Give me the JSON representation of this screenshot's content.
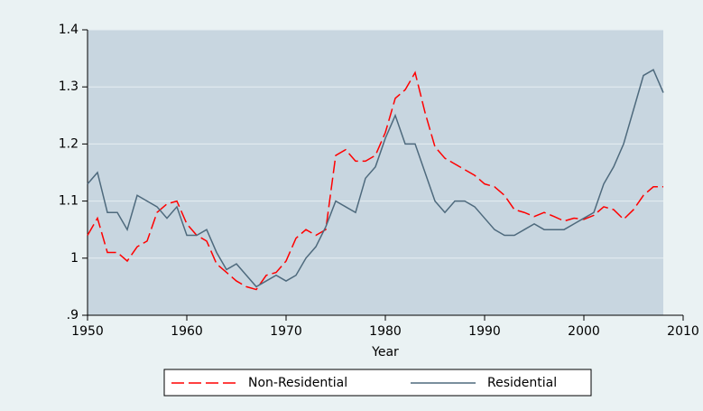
{
  "chart_data": {
    "type": "line",
    "x_label": "Year",
    "x": [
      1950,
      1951,
      1952,
      1953,
      1954,
      1955,
      1956,
      1957,
      1958,
      1959,
      1960,
      1961,
      1962,
      1963,
      1964,
      1965,
      1966,
      1967,
      1968,
      1969,
      1970,
      1971,
      1972,
      1973,
      1974,
      1975,
      1976,
      1977,
      1978,
      1979,
      1980,
      1981,
      1982,
      1983,
      1984,
      1985,
      1986,
      1987,
      1988,
      1989,
      1990,
      1991,
      1992,
      1993,
      1994,
      1995,
      1996,
      1997,
      1998,
      1999,
      2000,
      2001,
      2002,
      2003,
      2004,
      2005,
      2006,
      2007,
      2008
    ],
    "series": [
      {
        "name": "Non-Residential",
        "color": "#ff0000",
        "dashed": true,
        "values": [
          1.04,
          1.07,
          1.01,
          1.01,
          0.995,
          1.02,
          1.03,
          1.08,
          1.095,
          1.1,
          1.06,
          1.04,
          1.03,
          0.99,
          0.975,
          0.96,
          0.95,
          0.945,
          0.97,
          0.975,
          0.995,
          1.035,
          1.05,
          1.04,
          1.05,
          1.18,
          1.19,
          1.17,
          1.17,
          1.18,
          1.22,
          1.28,
          1.295,
          1.325,
          1.255,
          1.195,
          1.175,
          1.165,
          1.155,
          1.145,
          1.13,
          1.125,
          1.11,
          1.085,
          1.08,
          1.073,
          1.08,
          1.073,
          1.065,
          1.07,
          1.068,
          1.075,
          1.09,
          1.085,
          1.068,
          1.085,
          1.11,
          1.125,
          1.125
        ]
      },
      {
        "name": "Residential",
        "color": "#4e6a7d",
        "dashed": false,
        "values": [
          1.13,
          1.15,
          1.08,
          1.08,
          1.05,
          1.11,
          1.1,
          1.09,
          1.07,
          1.09,
          1.04,
          1.04,
          1.05,
          1.01,
          0.98,
          0.99,
          0.97,
          0.95,
          0.96,
          0.97,
          0.96,
          0.97,
          1.0,
          1.02,
          1.055,
          1.1,
          1.09,
          1.08,
          1.14,
          1.16,
          1.21,
          1.25,
          1.2,
          1.2,
          1.15,
          1.1,
          1.08,
          1.1,
          1.1,
          1.09,
          1.07,
          1.05,
          1.04,
          1.04,
          1.05,
          1.06,
          1.05,
          1.05,
          1.05,
          1.06,
          1.07,
          1.08,
          1.13,
          1.16,
          1.2,
          1.26,
          1.32,
          1.33,
          1.29
        ]
      }
    ],
    "xlim": [
      1950,
      2010
    ],
    "xticks": [
      1950,
      1960,
      1970,
      1980,
      1990,
      2000,
      2010
    ],
    "ylim": [
      0.9,
      1.4
    ],
    "yticks": [
      {
        "value": 0.9,
        "label": ".9"
      },
      1,
      1.1,
      1.2,
      1.3,
      1.4
    ],
    "grid": true,
    "legend": "bottom"
  }
}
